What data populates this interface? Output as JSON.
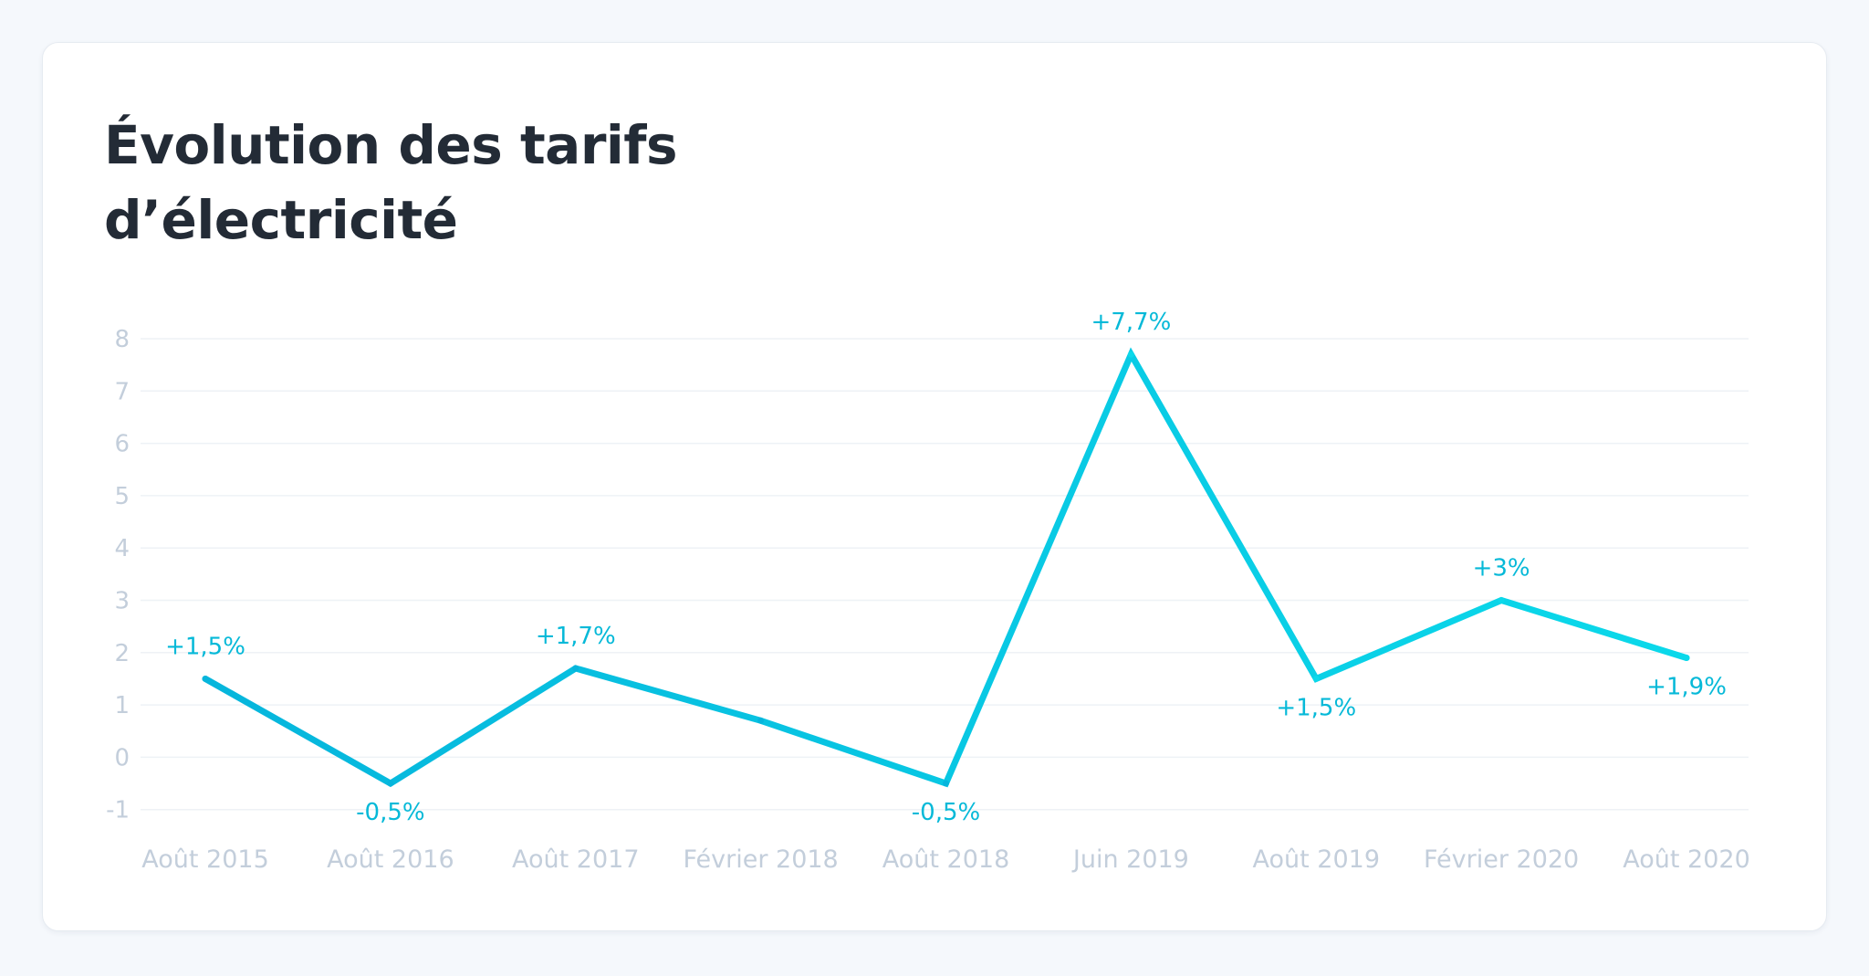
{
  "chart_data": {
    "type": "line",
    "title": "Évolution des tarifs d’électricité",
    "xlabel": "",
    "ylabel": "",
    "categories": [
      "Août 2015",
      "Août 2016",
      "Août 2017",
      "Février 2018",
      "Août 2018",
      "Juin 2019",
      "Août 2019",
      "Février 2020",
      "Août 2020"
    ],
    "series": [
      {
        "values": [
          1.5,
          -0.5,
          1.7,
          0.7,
          -0.5,
          7.7,
          1.5,
          3.0,
          1.9
        ],
        "data_labels": [
          "+1,5%",
          "-0,5%",
          "+1,7%",
          "",
          "-0,5%",
          "+7,7%",
          "+1,5%",
          "+3%",
          "+1,9%"
        ]
      }
    ],
    "yticks": [
      8,
      7,
      6,
      5,
      4,
      3,
      2,
      1,
      0,
      -1
    ],
    "ylim": [
      -1,
      8
    ],
    "grid": true,
    "legend": "none",
    "colors": {
      "line_start": "#06b5dc",
      "line_end": "#0bd9ea",
      "data_label": "#06b9d8",
      "tick_label": "#c3cedb",
      "gridline": "#eef2f6",
      "title": "#232b36"
    }
  }
}
